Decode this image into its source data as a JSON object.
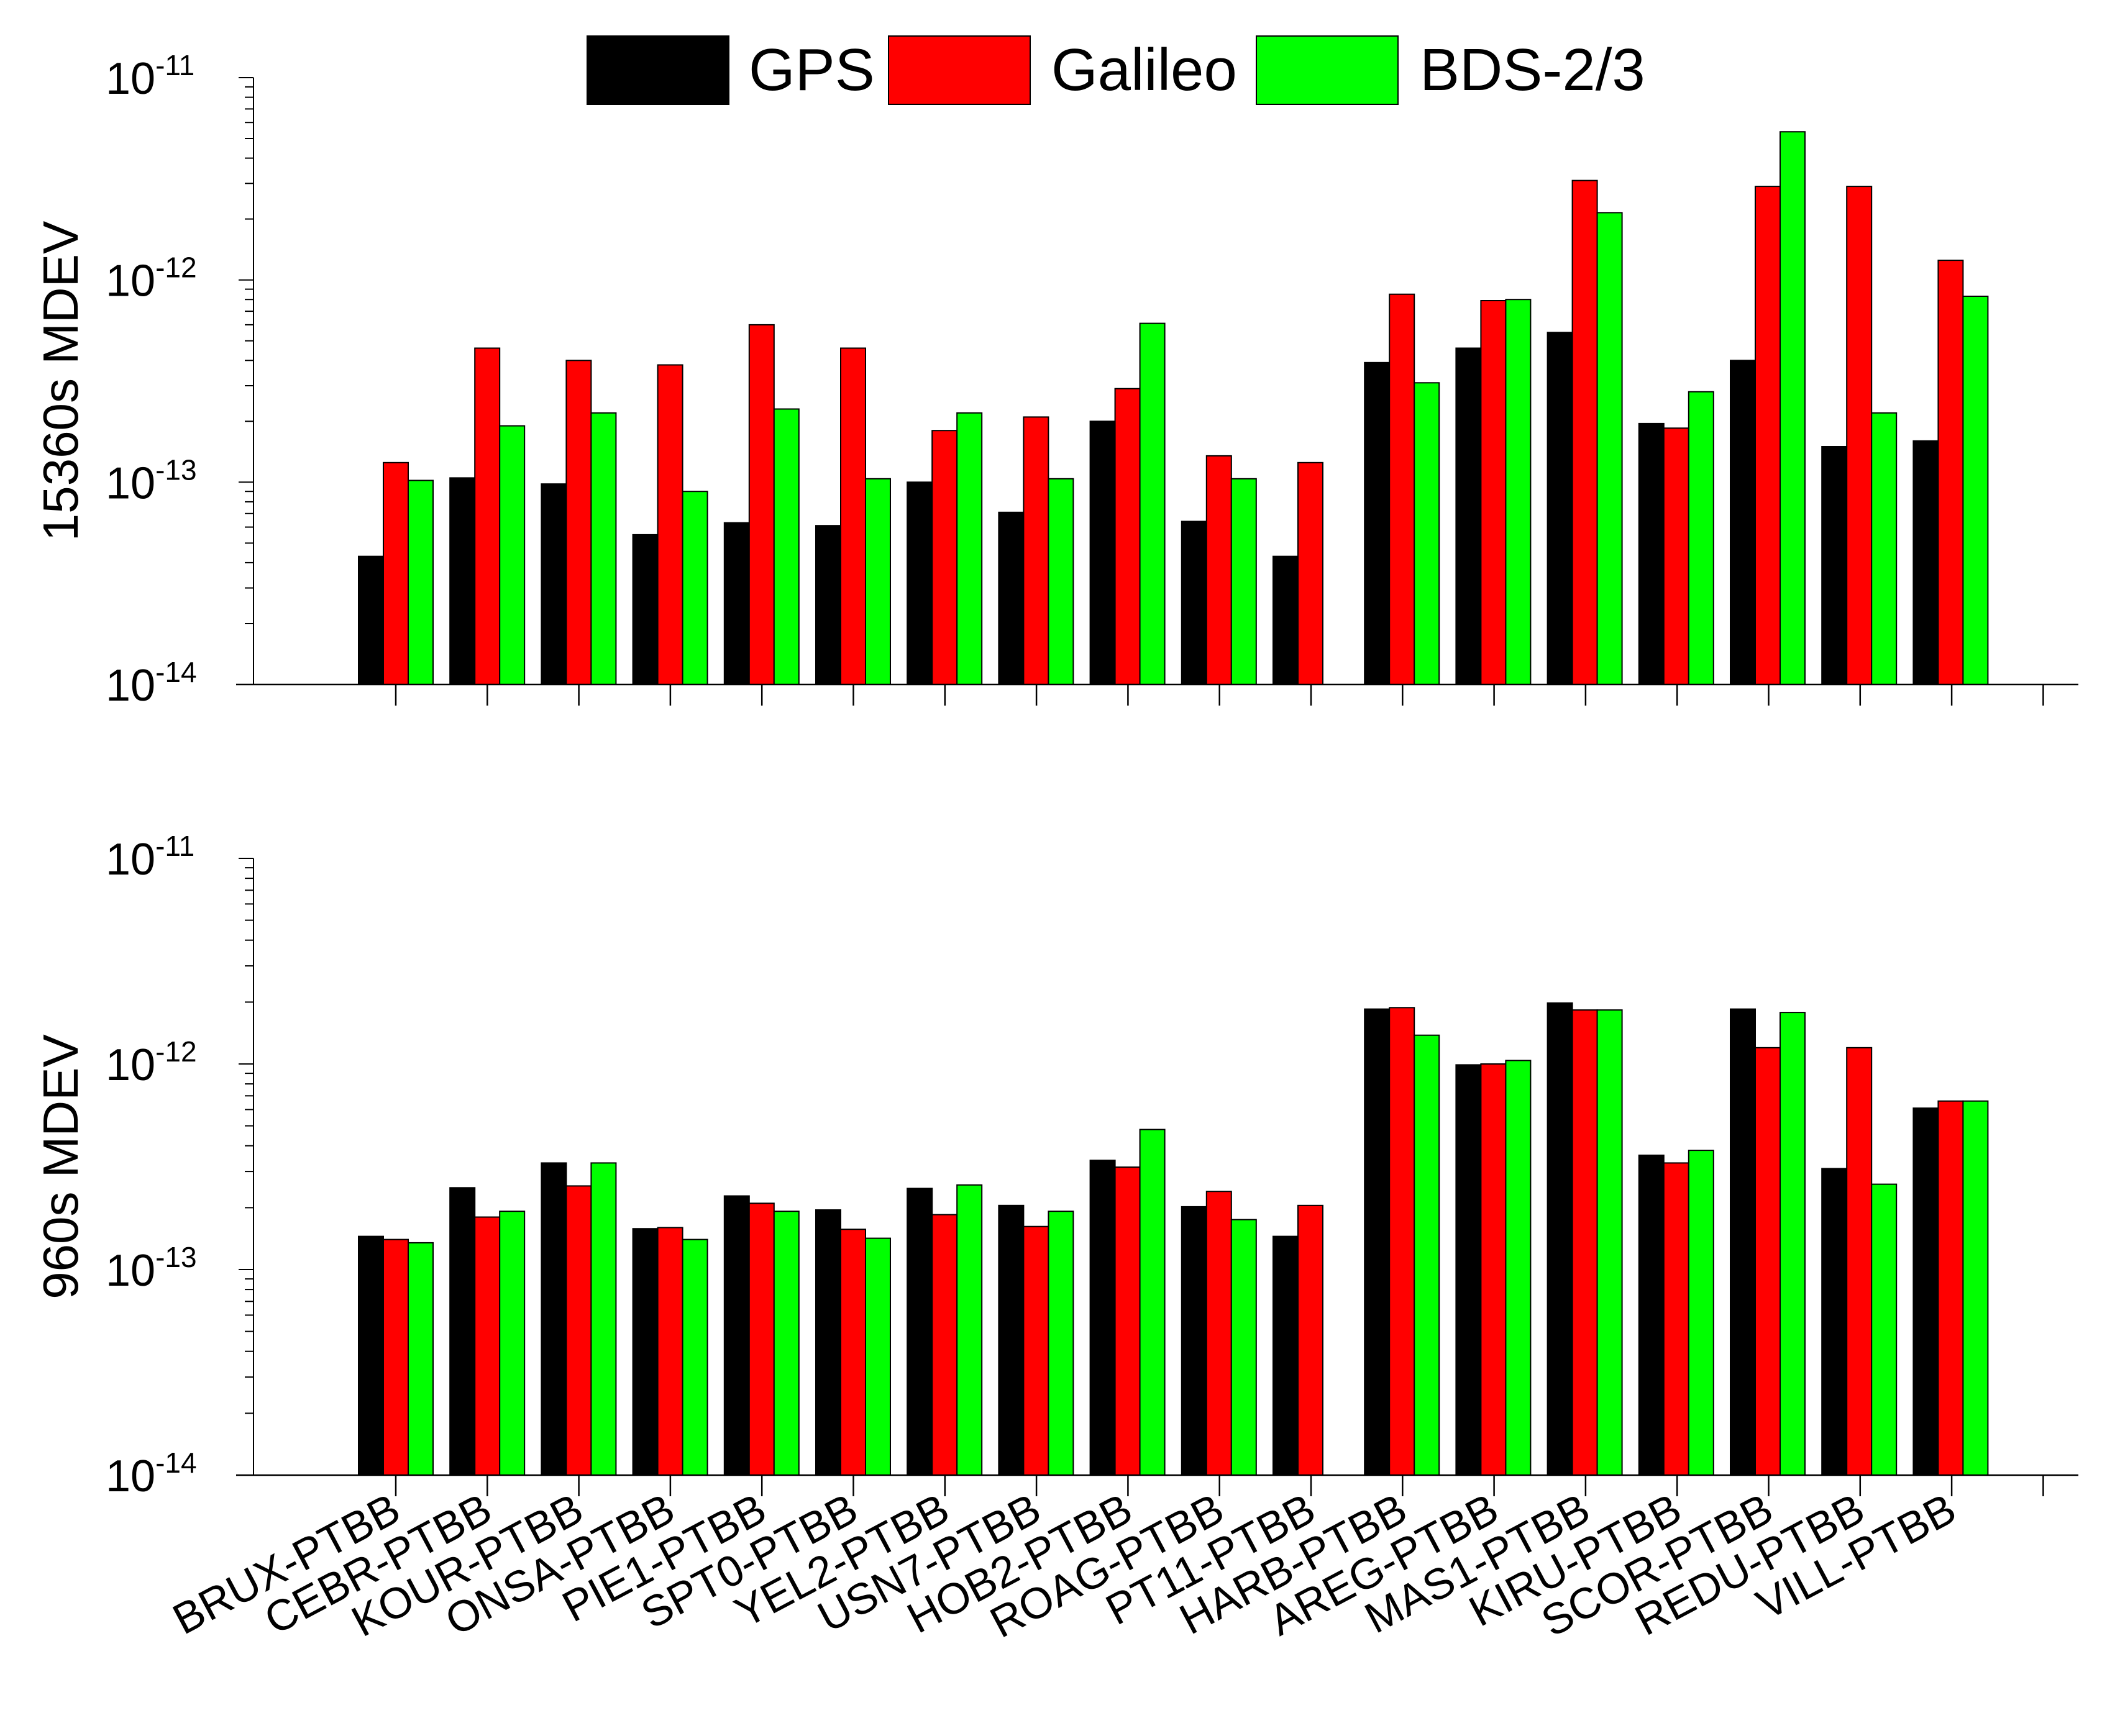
{
  "chart_data": {
    "type": "bar",
    "log_scale": true,
    "legend": {
      "placement": "top-center",
      "entries": [
        {
          "name": "GPS",
          "color": "#000000"
        },
        {
          "name": "Galileo",
          "color": "#ff0000"
        },
        {
          "name": "BDS-2/3",
          "color": "#00ff00"
        }
      ]
    },
    "categories": [
      "BRUX-PTBB",
      "CEBR-PTBB",
      "KOUR-PTBB",
      "ONSA-PTBB",
      "PIE1-PTBB",
      "SPT0-PTBB",
      "YEL2-PTBB",
      "USN7-PTBB",
      "HOB2-PTBB",
      "ROAG-PTBB",
      "PT11-PTBB",
      "HARB-PTBB",
      "AREG-PTBB",
      "MAS1-PTBB",
      "KIRU-PTBB",
      "SCOR-PTBB",
      "REDU-PTBB",
      "VILL-PTBB"
    ],
    "panels": [
      {
        "ylabel": "15360s MDEV",
        "ylim": [
          1e-14,
          1e-11
        ],
        "yticks": [
          {
            "value": 1e-11,
            "base": "10",
            "exp": "-11"
          },
          {
            "value": 1e-12,
            "base": "10",
            "exp": "-12"
          },
          {
            "value": 1e-13,
            "base": "10",
            "exp": "-13"
          },
          {
            "value": 1e-14,
            "base": "10",
            "exp": "-14"
          }
        ],
        "series": [
          {
            "name": "GPS",
            "values": [
              4.3e-14,
              1.05e-13,
              9.8e-14,
              5.5e-14,
              6.3e-14,
              6.1e-14,
              1e-13,
              7.1e-14,
              2e-13,
              6.4e-14,
              4.3e-14,
              3.9e-13,
              4.6e-13,
              5.5e-13,
              1.95e-13,
              4e-13,
              1.5e-13,
              1.6e-13
            ]
          },
          {
            "name": "Galileo",
            "values": [
              1.25e-13,
              4.6e-13,
              4e-13,
              3.8e-13,
              6e-13,
              4.6e-13,
              1.8e-13,
              2.1e-13,
              2.9e-13,
              1.35e-13,
              1.25e-13,
              8.5e-13,
              7.9e-13,
              3.1e-12,
              1.85e-13,
              2.9e-12,
              2.9e-12,
              1.25e-12
            ]
          },
          {
            "name": "BDS-2/3",
            "values": [
              1.02e-13,
              1.9e-13,
              2.2e-13,
              9e-14,
              2.3e-13,
              1.04e-13,
              2.2e-13,
              1.04e-13,
              6.1e-13,
              1.04e-13,
              null,
              3.1e-13,
              8e-13,
              2.15e-12,
              2.8e-13,
              5.4e-12,
              2.2e-13,
              8.3e-13
            ]
          }
        ]
      },
      {
        "ylabel": "960s MDEV",
        "ylim": [
          1e-14,
          1e-11
        ],
        "yticks": [
          {
            "value": 1e-11,
            "base": "10",
            "exp": "-11"
          },
          {
            "value": 1e-12,
            "base": "10",
            "exp": "-12"
          },
          {
            "value": 1e-13,
            "base": "10",
            "exp": "-13"
          },
          {
            "value": 1e-14,
            "base": "10",
            "exp": "-14"
          }
        ],
        "series": [
          {
            "name": "GPS",
            "values": [
              1.45e-13,
              2.5e-13,
              3.3e-13,
              1.58e-13,
              2.28e-13,
              1.95e-13,
              2.48e-13,
              2.05e-13,
              3.4e-13,
              2.02e-13,
              1.45e-13,
              1.85e-12,
              9.9e-13,
              1.98e-12,
              3.6e-13,
              1.85e-12,
              3.1e-13,
              6.1e-13
            ]
          },
          {
            "name": "Galileo",
            "values": [
              1.4e-13,
              1.8e-13,
              2.55e-13,
              1.6e-13,
              2.1e-13,
              1.57e-13,
              1.85e-13,
              1.62e-13,
              3.15e-13,
              2.4e-13,
              2.05e-13,
              1.88e-12,
              1e-12,
              1.83e-12,
              3.3e-13,
              1.2e-12,
              1.2e-12,
              6.6e-13
            ]
          },
          {
            "name": "BDS-2/3",
            "values": [
              1.35e-13,
              1.92e-13,
              3.3e-13,
              1.4e-13,
              1.92e-13,
              1.42e-13,
              2.58e-13,
              1.92e-13,
              4.8e-13,
              1.75e-13,
              null,
              1.38e-12,
              1.04e-12,
              1.83e-12,
              3.8e-13,
              1.78e-12,
              2.6e-13,
              6.6e-13
            ]
          }
        ]
      }
    ]
  }
}
